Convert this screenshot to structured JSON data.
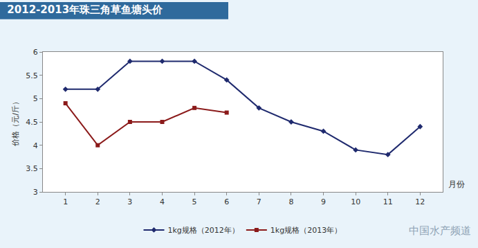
{
  "chart_data": {
    "type": "line",
    "title": "2012-2013年珠三角草鱼塘头价",
    "y_label": "价格（元/斤）",
    "x_label": "月份",
    "categories": [
      "1",
      "2",
      "3",
      "4",
      "5",
      "6",
      "7",
      "8",
      "9",
      "10",
      "11",
      "12"
    ],
    "series": [
      {
        "name": "1kg规格（2012年）",
        "color": "#1f2a6e",
        "marker": "diamond",
        "values": [
          5.2,
          5.2,
          5.8,
          5.8,
          5.8,
          5.4,
          4.8,
          4.5,
          4.3,
          3.9,
          3.8,
          4.4
        ]
      },
      {
        "name": "1kg规格（2013年）",
        "color": "#8b1a1a",
        "marker": "square",
        "values": [
          4.9,
          4.0,
          4.5,
          4.5,
          4.8,
          4.7,
          null,
          null,
          null,
          null,
          null,
          null
        ]
      }
    ],
    "ylim": [
      3,
      6
    ],
    "yticks": [
      3,
      3.5,
      4,
      4.5,
      5,
      5.5,
      6
    ],
    "grid": false,
    "legend": "bottom",
    "annotations": [
      {
        "text": "中国水产频道"
      }
    ]
  }
}
